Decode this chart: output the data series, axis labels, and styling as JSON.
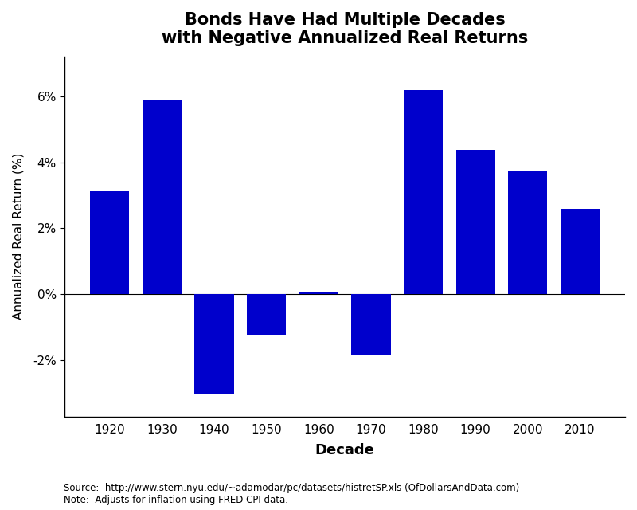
{
  "decades": [
    "1920",
    "1930",
    "1940",
    "1950",
    "1960",
    "1970",
    "1980",
    "1990",
    "2000",
    "2010"
  ],
  "values": [
    3.11,
    5.88,
    -3.03,
    -1.22,
    0.05,
    -1.82,
    6.18,
    4.38,
    3.72,
    2.58
  ],
  "bar_color": "#0000CC",
  "title_line1": "Bonds Have Had Multiple Decades",
  "title_line2": "with Negative Annualized Real Returns",
  "xlabel": "Decade",
  "ylabel": "Annualized Real Return (%)",
  "ylim_min": -3.7,
  "ylim_max": 7.2,
  "yticks": [
    -2,
    0,
    2,
    4,
    6
  ],
  "ytick_labels": [
    "-2%",
    "0%",
    "2%",
    "4%",
    "6%"
  ],
  "source_text": "Source:  http://www.stern.nyu.edu/~adamodar/pc/datasets/histretSP.xls (OfDollarsAndData.com)\nNote:  Adjusts for inflation using FRED CPI data.",
  "background_color": "#FFFFFF",
  "bar_width": 0.75
}
